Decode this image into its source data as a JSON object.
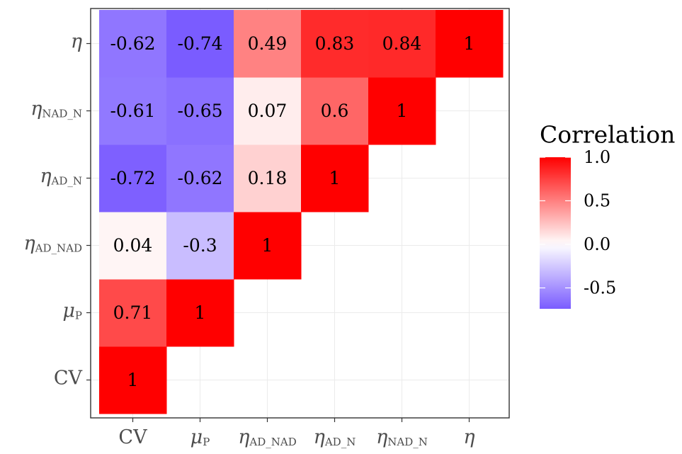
{
  "chart_data": {
    "type": "heatmap",
    "title": "",
    "xlabel": "",
    "ylabel": "",
    "variables": [
      {
        "base": "CV",
        "sub": ""
      },
      {
        "base": "μ",
        "sub": "P"
      },
      {
        "base": "η",
        "sub": "AD_NAD"
      },
      {
        "base": "η",
        "sub": "AD_N"
      },
      {
        "base": "η",
        "sub": "NAD_N"
      },
      {
        "base": "η",
        "sub": ""
      }
    ],
    "cells": [
      {
        "x": 0,
        "y": 0,
        "value": 1,
        "label": "1"
      },
      {
        "x": 0,
        "y": 1,
        "value": 0.71,
        "label": "0.71"
      },
      {
        "x": 1,
        "y": 1,
        "value": 1,
        "label": "1"
      },
      {
        "x": 0,
        "y": 2,
        "value": 0.04,
        "label": "0.04"
      },
      {
        "x": 1,
        "y": 2,
        "value": -0.3,
        "label": "-0.3"
      },
      {
        "x": 2,
        "y": 2,
        "value": 1,
        "label": "1"
      },
      {
        "x": 0,
        "y": 3,
        "value": -0.72,
        "label": "-0.72"
      },
      {
        "x": 1,
        "y": 3,
        "value": -0.62,
        "label": "-0.62"
      },
      {
        "x": 2,
        "y": 3,
        "value": 0.18,
        "label": "0.18"
      },
      {
        "x": 3,
        "y": 3,
        "value": 1,
        "label": "1"
      },
      {
        "x": 0,
        "y": 4,
        "value": -0.61,
        "label": "-0.61"
      },
      {
        "x": 1,
        "y": 4,
        "value": -0.65,
        "label": "-0.65"
      },
      {
        "x": 2,
        "y": 4,
        "value": 0.07,
        "label": "0.07"
      },
      {
        "x": 3,
        "y": 4,
        "value": 0.6,
        "label": "0.6"
      },
      {
        "x": 4,
        "y": 4,
        "value": 1,
        "label": "1"
      },
      {
        "x": 0,
        "y": 5,
        "value": -0.62,
        "label": "-0.62"
      },
      {
        "x": 1,
        "y": 5,
        "value": -0.74,
        "label": "-0.74"
      },
      {
        "x": 2,
        "y": 5,
        "value": 0.49,
        "label": "0.49"
      },
      {
        "x": 3,
        "y": 5,
        "value": 0.83,
        "label": "0.83"
      },
      {
        "x": 4,
        "y": 5,
        "value": 0.84,
        "label": "0.84"
      },
      {
        "x": 5,
        "y": 5,
        "value": 1,
        "label": "1"
      }
    ],
    "legend": {
      "title": "Correlation",
      "placement": "right",
      "range": [
        -0.74,
        1
      ],
      "breaks": [
        1.0,
        0.5,
        0.0,
        -0.5
      ],
      "break_labels": [
        "1.0",
        "0.5",
        "0.0",
        "-0.5"
      ]
    },
    "colors": {
      "low": "#7a5cff",
      "mid": "#ffffff",
      "high": "#ff0000"
    },
    "grid": true
  }
}
